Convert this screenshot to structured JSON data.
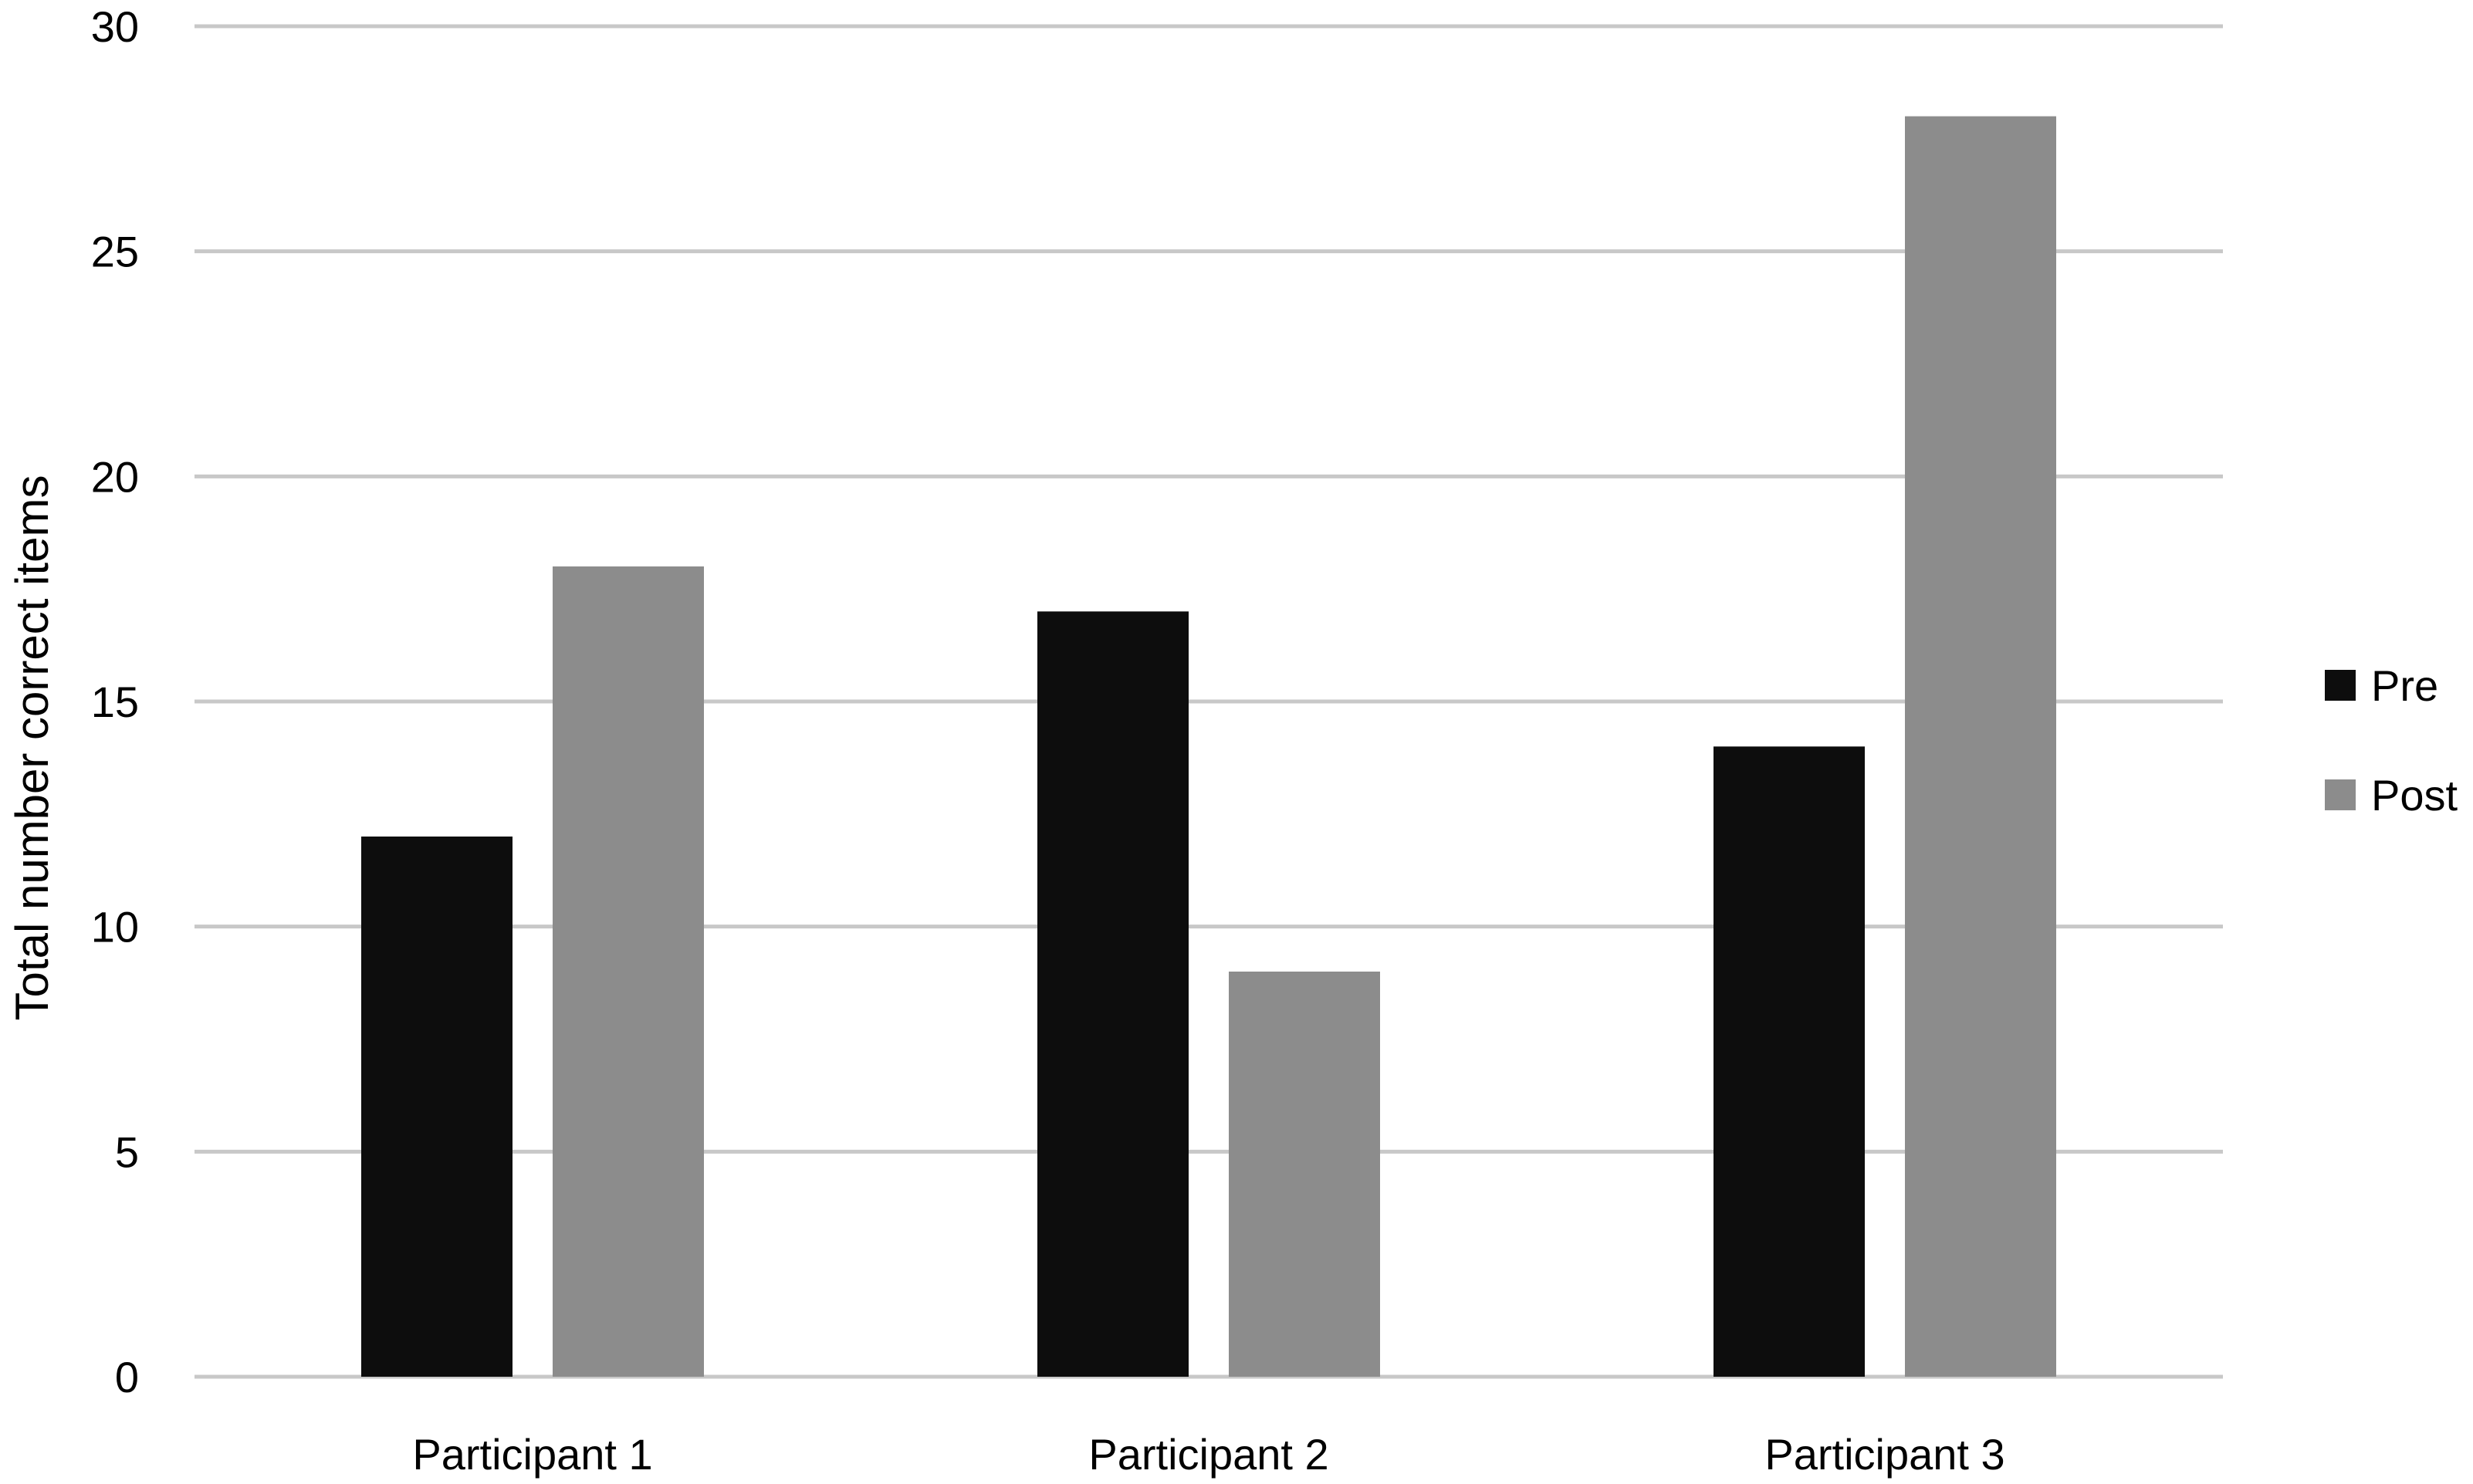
{
  "chart_data": {
    "type": "bar",
    "title": "",
    "xlabel": "",
    "ylabel": "Total number correct items",
    "categories": [
      "Participant 1",
      "Participant 2",
      "Participant 3"
    ],
    "series": [
      {
        "name": "Pre",
        "values": [
          12,
          17,
          14
        ],
        "color": "#0d0d0d"
      },
      {
        "name": "Post",
        "values": [
          18,
          9,
          28
        ],
        "color": "#8c8c8c"
      }
    ],
    "ylim": [
      0,
      30
    ],
    "yticks": [
      0,
      5,
      10,
      15,
      20,
      25,
      30
    ],
    "grid": true,
    "gridline_color": "#c8c8c8",
    "legend_position": "right"
  }
}
